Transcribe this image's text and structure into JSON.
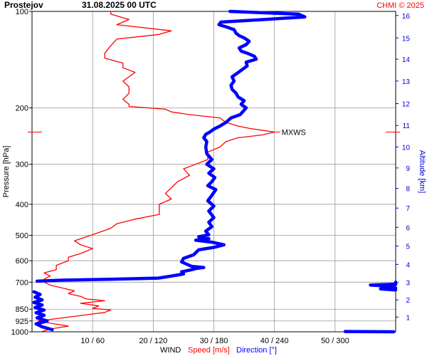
{
  "header": {
    "station": "Prostejov",
    "datetime": "31.08.2025 00 UTC",
    "credit": "CHMI © 2025"
  },
  "colors": {
    "speed": "#ff0000",
    "direction": "#0000ff",
    "altitude_axis": "#0000cc",
    "grid": "#999999"
  },
  "chart_data": {
    "type": "line",
    "y_axis": {
      "label": "Pressure [hPa]",
      "scale": "log",
      "range": [
        1000,
        100
      ],
      "ticks": [
        {
          "value": 100,
          "label": "100"
        },
        {
          "value": 200,
          "label": "200"
        },
        {
          "value": 300,
          "label": "300"
        },
        {
          "value": 400,
          "label": "400"
        },
        {
          "value": 500,
          "label": "500"
        },
        {
          "value": 600,
          "label": "600"
        },
        {
          "value": 700,
          "label": "700"
        },
        {
          "value": 850,
          "label": "850"
        },
        {
          "value": 925,
          "label": "925"
        },
        {
          "value": 1000,
          "label": "1000"
        }
      ]
    },
    "y2_axis": {
      "label": "Altitude [km]",
      "ticks": [
        {
          "value": 1,
          "label": "1",
          "pressure": 900
        },
        {
          "value": 2,
          "label": "2",
          "pressure": 795
        },
        {
          "value": 3,
          "label": "3",
          "pressure": 701
        },
        {
          "value": 4,
          "label": "4",
          "pressure": 616
        },
        {
          "value": 5,
          "label": "5",
          "pressure": 540
        },
        {
          "value": 6,
          "label": "6",
          "pressure": 472
        },
        {
          "value": 7,
          "label": "7",
          "pressure": 411
        },
        {
          "value": 8,
          "label": "8",
          "pressure": 357
        },
        {
          "value": 9,
          "label": "9",
          "pressure": 308
        },
        {
          "value": 10,
          "label": "10",
          "pressure": 265
        },
        {
          "value": 11,
          "label": "11",
          "pressure": 227
        },
        {
          "value": 12,
          "label": "12",
          "pressure": 194
        },
        {
          "value": 13,
          "label": "13",
          "pressure": 165
        },
        {
          "value": 14,
          "label": "14",
          "pressure": 141
        },
        {
          "value": 15,
          "label": "15",
          "pressure": 121
        },
        {
          "value": 16,
          "label": "16",
          "pressure": 103
        }
      ]
    },
    "x_axis": {
      "label": "WIND",
      "speed_label": "Speed [m/s]",
      "direction_label": "Direction [°]",
      "speed_range": [
        0,
        60
      ],
      "direction_range": [
        0,
        360
      ],
      "ticks": [
        {
          "speed": 10,
          "direction": 60,
          "label": "10 / 60"
        },
        {
          "speed": 20,
          "direction": 120,
          "label": "20 / 120"
        },
        {
          "speed": 30,
          "direction": 180,
          "label": "30 / 180"
        },
        {
          "speed": 40,
          "direction": 240,
          "label": "40 / 240"
        },
        {
          "speed": 50,
          "direction": 300,
          "label": "50 / 300"
        }
      ]
    },
    "series": [
      {
        "name": "Speed [m/s]",
        "units": "m/s",
        "points": [
          [
            1000,
            1.5
          ],
          [
            980,
            3
          ],
          [
            960,
            6
          ],
          [
            940,
            3
          ],
          [
            925,
            1
          ],
          [
            905,
            5
          ],
          [
            885,
            9
          ],
          [
            870,
            12
          ],
          [
            855,
            13
          ],
          [
            845,
            10
          ],
          [
            830,
            11
          ],
          [
            815,
            8
          ],
          [
            800,
            12
          ],
          [
            790,
            9
          ],
          [
            775,
            8
          ],
          [
            760,
            6
          ],
          [
            745,
            7
          ],
          [
            730,
            5
          ],
          [
            715,
            3
          ],
          [
            700,
            2
          ],
          [
            685,
            2
          ],
          [
            670,
            3
          ],
          [
            655,
            2
          ],
          [
            640,
            4
          ],
          [
            620,
            4
          ],
          [
            600,
            6
          ],
          [
            585,
            6
          ],
          [
            570,
            8
          ],
          [
            550,
            10
          ],
          [
            535,
            8
          ],
          [
            520,
            7
          ],
          [
            505,
            9
          ],
          [
            490,
            11
          ],
          [
            475,
            13
          ],
          [
            460,
            14
          ],
          [
            445,
            17
          ],
          [
            430,
            21
          ],
          [
            415,
            21
          ],
          [
            400,
            21
          ],
          [
            385,
            23
          ],
          [
            370,
            22
          ],
          [
            355,
            23
          ],
          [
            340,
            24
          ],
          [
            325,
            26
          ],
          [
            310,
            25
          ],
          [
            300,
            27
          ],
          [
            290,
            29
          ],
          [
            275,
            29
          ],
          [
            265,
            31
          ],
          [
            255,
            32
          ],
          [
            248,
            34
          ],
          [
            243,
            38
          ],
          [
            238,
            40
          ],
          [
            232,
            36
          ],
          [
            228,
            34
          ],
          [
            222,
            32
          ],
          [
            215,
            31
          ],
          [
            210,
            26
          ],
          [
            206,
            23
          ],
          [
            202,
            22
          ],
          [
            198,
            16
          ],
          [
            195,
            16
          ],
          [
            188,
            15
          ],
          [
            180,
            16
          ],
          [
            172,
            16
          ],
          [
            165,
            15
          ],
          [
            160,
            16
          ],
          [
            155,
            17
          ],
          [
            150,
            15
          ],
          [
            145,
            15
          ],
          [
            140,
            12
          ],
          [
            135,
            12
          ],
          [
            128,
            13
          ],
          [
            122,
            14
          ],
          [
            118,
            21
          ],
          [
            115,
            23
          ],
          [
            110,
            14
          ],
          [
            106,
            16
          ],
          [
            102,
            13
          ],
          [
            100,
            13
          ]
        ]
      },
      {
        "name": "Direction [°]",
        "units": "°",
        "points": [
          [
            1000,
            358
          ],
          [
            998,
            310
          ],
          [
            985,
            20
          ],
          [
            965,
            10
          ],
          [
            945,
            4
          ],
          [
            925,
            15
          ],
          [
            905,
            5
          ],
          [
            888,
            12
          ],
          [
            872,
            4
          ],
          [
            855,
            12
          ],
          [
            840,
            3
          ],
          [
            825,
            10
          ],
          [
            810,
            2
          ],
          [
            795,
            10
          ],
          [
            780,
            3
          ],
          [
            765,
            8
          ],
          [
            750,
            2
          ],
          [
            740,
            360
          ],
          [
            735,
            345
          ],
          [
            730,
            360
          ],
          [
            722,
            358
          ],
          [
            715,
            335
          ],
          [
            710,
            360
          ],
          [
            700,
            360
          ],
          [
            695,
            5
          ],
          [
            690,
            30
          ],
          [
            685,
            80
          ],
          [
            680,
            125
          ],
          [
            670,
            138
          ],
          [
            660,
            150
          ],
          [
            650,
            148
          ],
          [
            640,
            158
          ],
          [
            635,
            162
          ],
          [
            630,
            170
          ],
          [
            625,
            158
          ],
          [
            615,
            153
          ],
          [
            605,
            148
          ],
          [
            590,
            150
          ],
          [
            575,
            160
          ],
          [
            555,
            165
          ],
          [
            545,
            180
          ],
          [
            535,
            190
          ],
          [
            525,
            178
          ],
          [
            518,
            162
          ],
          [
            512,
            175
          ],
          [
            505,
            165
          ],
          [
            498,
            175
          ],
          [
            485,
            172
          ],
          [
            470,
            178
          ],
          [
            455,
            175
          ],
          [
            440,
            180
          ],
          [
            420,
            175
          ],
          [
            405,
            180
          ],
          [
            390,
            174
          ],
          [
            375,
            178
          ],
          [
            360,
            182
          ],
          [
            350,
            174
          ],
          [
            340,
            178
          ],
          [
            330,
            181
          ],
          [
            320,
            175
          ],
          [
            310,
            180
          ],
          [
            300,
            173
          ],
          [
            290,
            178
          ],
          [
            278,
            173
          ],
          [
            265,
            172
          ],
          [
            255,
            173
          ],
          [
            248,
            170
          ],
          [
            242,
            172
          ],
          [
            238,
            176
          ],
          [
            233,
            180
          ],
          [
            228,
            186
          ],
          [
            222,
            192
          ],
          [
            215,
            197
          ],
          [
            210,
            206
          ],
          [
            205,
            209
          ],
          [
            200,
            212
          ],
          [
            195,
            207
          ],
          [
            190,
            210
          ],
          [
            185,
            204
          ],
          [
            180,
            202
          ],
          [
            175,
            198
          ],
          [
            170,
            197
          ],
          [
            165,
            200
          ],
          [
            160,
            198
          ],
          [
            156,
            203
          ],
          [
            152,
            208
          ],
          [
            148,
            213
          ],
          [
            144,
            212
          ],
          [
            141,
            222
          ],
          [
            138,
            220
          ],
          [
            135,
            213
          ],
          [
            133,
            207
          ],
          [
            130,
            205
          ],
          [
            127,
            212
          ],
          [
            124,
            215
          ],
          [
            121,
            210
          ],
          [
            119,
            205
          ],
          [
            117,
            202
          ],
          [
            114,
            200
          ],
          [
            112,
            193
          ],
          [
            110,
            185
          ],
          [
            108,
            187
          ],
          [
            106,
            230
          ],
          [
            104,
            270
          ],
          [
            102,
            264
          ],
          [
            100,
            196
          ]
        ]
      }
    ],
    "annotations": [
      {
        "text": "MXWS",
        "pressure": 238
      }
    ],
    "grid": true
  }
}
